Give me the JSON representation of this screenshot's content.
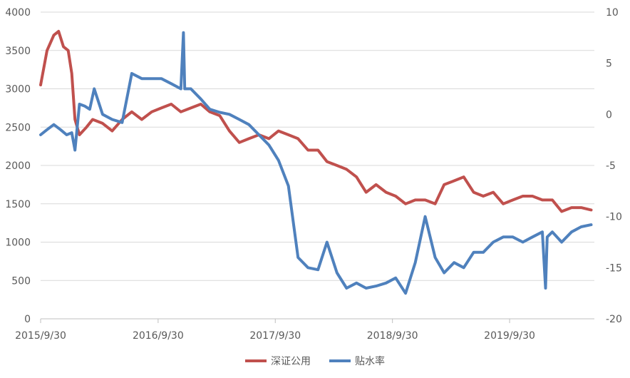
{
  "chart_data": {
    "type": "line",
    "title": "",
    "xlabel": "",
    "ylabel": "",
    "x_ticks": [
      "2015/9/30",
      "2016/9/30",
      "2017/9/30",
      "2018/9/30",
      "2019/9/30"
    ],
    "y_left": {
      "lim": [
        0,
        4000
      ],
      "ticks": [
        0,
        500,
        1000,
        1500,
        2000,
        2500,
        3000,
        3500,
        4000
      ]
    },
    "y_right": {
      "lim": [
        -20,
        10
      ],
      "ticks": [
        -20,
        -15,
        -10,
        -5,
        0,
        5,
        10
      ]
    },
    "grid": true,
    "legend_position": "bottom",
    "series": [
      {
        "name": "深证公用",
        "axis": "left",
        "color": "#C0504D",
        "x": [
          "2015-09-30",
          "2015-10-20",
          "2015-11-10",
          "2015-11-25",
          "2015-12-10",
          "2015-12-25",
          "2016-01-05",
          "2016-01-15",
          "2016-01-29",
          "2016-02-20",
          "2016-03-10",
          "2016-04-10",
          "2016-05-10",
          "2016-06-10",
          "2016-07-10",
          "2016-08-10",
          "2016-09-10",
          "2016-10-10",
          "2016-11-10",
          "2016-12-10",
          "2017-01-10",
          "2017-02-10",
          "2017-03-10",
          "2017-04-10",
          "2017-05-10",
          "2017-06-10",
          "2017-07-10",
          "2017-08-10",
          "2017-09-10",
          "2017-10-10",
          "2017-11-10",
          "2017-12-10",
          "2018-01-10",
          "2018-02-10",
          "2018-03-10",
          "2018-04-10",
          "2018-05-10",
          "2018-06-10",
          "2018-07-10",
          "2018-08-10",
          "2018-09-10",
          "2018-10-10",
          "2018-11-10",
          "2018-12-10",
          "2019-01-10",
          "2019-02-10",
          "2019-03-10",
          "2019-04-10",
          "2019-05-10",
          "2019-06-10",
          "2019-07-10",
          "2019-08-10",
          "2019-09-10",
          "2019-10-10",
          "2019-11-10",
          "2019-12-10",
          "2020-01-10",
          "2020-02-10",
          "2020-03-10",
          "2020-04-10",
          "2020-05-10",
          "2020-06-10"
        ],
        "values": [
          3050,
          3500,
          3700,
          3750,
          3550,
          3500,
          3200,
          2600,
          2400,
          2500,
          2600,
          2550,
          2450,
          2600,
          2700,
          2600,
          2700,
          2750,
          2800,
          2700,
          2750,
          2800,
          2700,
          2650,
          2450,
          2300,
          2350,
          2400,
          2350,
          2450,
          2400,
          2350,
          2200,
          2200,
          2050,
          2000,
          1950,
          1850,
          1650,
          1750,
          1650,
          1600,
          1500,
          1550,
          1550,
          1500,
          1750,
          1800,
          1850,
          1650,
          1600,
          1650,
          1500,
          1550,
          1600,
          1600,
          1550,
          1550,
          1400,
          1450,
          1450,
          1420
        ]
      },
      {
        "name": "贴水率",
        "axis": "right",
        "color": "#4F81BD",
        "x": [
          "2015-09-30",
          "2015-10-20",
          "2015-11-10",
          "2015-12-01",
          "2015-12-20",
          "2016-01-05",
          "2016-01-15",
          "2016-01-29",
          "2016-02-15",
          "2016-03-01",
          "2016-03-15",
          "2016-04-10",
          "2016-05-10",
          "2016-06-10",
          "2016-07-10",
          "2016-08-10",
          "2016-09-10",
          "2016-10-10",
          "2016-11-10",
          "2016-12-10",
          "2016-12-18",
          "2016-12-22",
          "2017-01-10",
          "2017-02-10",
          "2017-03-10",
          "2017-04-10",
          "2017-05-10",
          "2017-06-10",
          "2017-07-10",
          "2017-08-10",
          "2017-09-10",
          "2017-10-10",
          "2017-11-10",
          "2017-12-10",
          "2018-01-10",
          "2018-02-10",
          "2018-03-10",
          "2018-04-10",
          "2018-05-10",
          "2018-06-10",
          "2018-07-10",
          "2018-08-10",
          "2018-09-10",
          "2018-10-10",
          "2018-11-10",
          "2018-12-10",
          "2019-01-10",
          "2019-02-10",
          "2019-03-10",
          "2019-04-10",
          "2019-05-10",
          "2019-06-10",
          "2019-07-10",
          "2019-08-10",
          "2019-09-10",
          "2019-10-10",
          "2019-11-10",
          "2019-12-10",
          "2020-01-10",
          "2020-01-20",
          "2020-01-25",
          "2020-02-10",
          "2020-03-10",
          "2020-04-10",
          "2020-05-10",
          "2020-06-10"
        ],
        "values": [
          -2,
          -1.5,
          -1,
          -1.5,
          -2,
          -1.8,
          -3.5,
          1,
          0.8,
          0.5,
          2.5,
          0,
          -0.5,
          -0.8,
          4,
          3.5,
          3.5,
          3.5,
          3,
          2.5,
          8,
          2.5,
          2.5,
          1.5,
          0.5,
          0.2,
          0,
          -0.5,
          -1,
          -2,
          -3,
          -4.5,
          -7,
          -14,
          -15,
          -15.2,
          -12.5,
          -15.5,
          -17,
          -16.5,
          -17,
          -16.8,
          -16.5,
          -16,
          -17.5,
          -14.5,
          -10,
          -14,
          -15.5,
          -14.5,
          -15,
          -13.5,
          -13.5,
          -12.5,
          -12,
          -12,
          -12.5,
          -12,
          -11.5,
          -17,
          -12,
          -11.5,
          -12.5,
          -11.5,
          -11,
          -10.8
        ]
      }
    ]
  }
}
